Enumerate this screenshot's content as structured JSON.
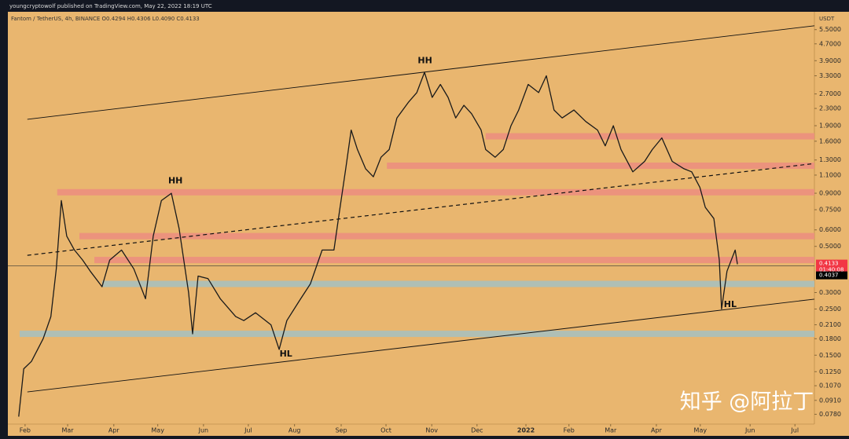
{
  "chart_data": {
    "type": "line",
    "credit": "youngcryptowolf published on TradingView.com, May 22, 2022 18:19 UTC",
    "title": "Fantom / TetherUS, 4h, BINANCE  O0.4294  H0.4306  L0.4090  C0.4133",
    "y_unit": "USDT",
    "watermark": "知乎 @阿拉丁",
    "log_scale": true,
    "background": "#e9b66f",
    "xlim": [
      -0.38,
      17.43
    ],
    "ylim": [
      0.07,
      6.7
    ],
    "xticks": [
      {
        "value": 0,
        "label": "Feb"
      },
      {
        "value": 0.94,
        "label": "Mar"
      },
      {
        "value": 1.96,
        "label": "Apr"
      },
      {
        "value": 2.93,
        "label": "May"
      },
      {
        "value": 3.94,
        "label": "Jun"
      },
      {
        "value": 4.93,
        "label": "Jul"
      },
      {
        "value": 5.95,
        "label": "Aug"
      },
      {
        "value": 6.98,
        "label": "Sep"
      },
      {
        "value": 7.97,
        "label": "Oct"
      },
      {
        "value": 8.98,
        "label": "Nov"
      },
      {
        "value": 9.98,
        "label": "Dec"
      },
      {
        "value": 11.06,
        "label": "2022"
      },
      {
        "value": 12.01,
        "label": "Feb"
      },
      {
        "value": 12.93,
        "label": "Mar"
      },
      {
        "value": 13.94,
        "label": "Apr"
      },
      {
        "value": 14.91,
        "label": "May"
      },
      {
        "value": 16.01,
        "label": "Jun"
      },
      {
        "value": 17.0,
        "label": "Jul"
      }
    ],
    "yticks": [
      {
        "value": 5.5,
        "label": "5.5000"
      },
      {
        "value": 4.7,
        "label": "4.7000"
      },
      {
        "value": 3.9,
        "label": "3.9000"
      },
      {
        "value": 3.3,
        "label": "3.3000"
      },
      {
        "value": 2.7,
        "label": "2.7000"
      },
      {
        "value": 2.3,
        "label": "2.3000"
      },
      {
        "value": 1.9,
        "label": "1.9000"
      },
      {
        "value": 1.6,
        "label": "1.6000"
      },
      {
        "value": 1.3,
        "label": "1.3000"
      },
      {
        "value": 1.1,
        "label": "1.1000"
      },
      {
        "value": 0.9,
        "label": "0.9000"
      },
      {
        "value": 0.75,
        "label": "0.7500"
      },
      {
        "value": 0.6,
        "label": "0.6000"
      },
      {
        "value": 0.5,
        "label": "0.5000"
      },
      {
        "value": 0.3,
        "label": "0.3000"
      },
      {
        "value": 0.25,
        "label": "0.2500"
      },
      {
        "value": 0.21,
        "label": "0.2100"
      },
      {
        "value": 0.18,
        "label": "0.1800"
      },
      {
        "value": 0.15,
        "label": "0.1500"
      },
      {
        "value": 0.125,
        "label": "0.1250"
      },
      {
        "value": 0.107,
        "label": "0.1070"
      },
      {
        "value": 0.091,
        "label": "0.0910"
      },
      {
        "value": 0.078,
        "label": "0.0780"
      }
    ],
    "series": [
      {
        "color": "#1a1a1a",
        "x": [
          -0.14,
          -0.03,
          0.14,
          0.4,
          0.57,
          0.69,
          0.8,
          0.92,
          1.09,
          1.27,
          1.44,
          1.7,
          1.87,
          2.13,
          2.4,
          2.66,
          2.83,
          3.01,
          3.23,
          3.4,
          3.61,
          3.7,
          3.82,
          4.04,
          4.31,
          4.65,
          4.83,
          5.09,
          5.43,
          5.61,
          5.78,
          6.04,
          6.3,
          6.56,
          6.82,
          6.94,
          7.08,
          7.2,
          7.34,
          7.52,
          7.69,
          7.86,
          8.04,
          8.21,
          8.47,
          8.65,
          8.82,
          8.99,
          9.17,
          9.34,
          9.51,
          9.69,
          9.86,
          10.07,
          10.17,
          10.38,
          10.56,
          10.73,
          10.9,
          11.11,
          11.34,
          11.51,
          11.68,
          11.86,
          12.12,
          12.38,
          12.64,
          12.81,
          12.99,
          13.16,
          13.42,
          13.68,
          13.85,
          14.06,
          14.29,
          14.55,
          14.72,
          14.9,
          15.02,
          15.21,
          15.33,
          15.38,
          15.5,
          15.68,
          15.73
        ],
        "values": [
          0.076,
          0.129,
          0.14,
          0.18,
          0.23,
          0.39,
          0.83,
          0.56,
          0.48,
          0.43,
          0.38,
          0.32,
          0.43,
          0.48,
          0.39,
          0.28,
          0.56,
          0.83,
          0.9,
          0.61,
          0.3,
          0.19,
          0.36,
          0.35,
          0.28,
          0.23,
          0.22,
          0.24,
          0.21,
          0.16,
          0.22,
          0.27,
          0.33,
          0.48,
          0.48,
          0.73,
          1.18,
          1.81,
          1.46,
          1.18,
          1.08,
          1.34,
          1.46,
          2.07,
          2.47,
          2.74,
          3.43,
          2.6,
          3.0,
          2.6,
          2.07,
          2.38,
          2.17,
          1.81,
          1.46,
          1.34,
          1.46,
          1.9,
          2.26,
          3.0,
          2.74,
          3.3,
          2.26,
          2.07,
          2.26,
          1.99,
          1.81,
          1.52,
          1.9,
          1.46,
          1.14,
          1.28,
          1.46,
          1.66,
          1.28,
          1.18,
          1.14,
          0.96,
          0.77,
          0.68,
          0.43,
          0.25,
          0.38,
          0.48,
          0.41
        ]
      }
    ],
    "zones": [
      {
        "from": 10.17,
        "value": 1.69,
        "color": "#ec8f7e"
      },
      {
        "from": 7.99,
        "value": 1.22,
        "color": "#ec8f7e"
      },
      {
        "from": 0.71,
        "value": 0.91,
        "color": "#ec8f7e"
      },
      {
        "from": 1.2,
        "value": 0.56,
        "color": "#ec8f7e"
      },
      {
        "from": 1.53,
        "value": 0.43,
        "color": "#ec8f7e"
      },
      {
        "from": 1.7,
        "value": 0.33,
        "color": "#a9c0bc"
      },
      {
        "from": -0.12,
        "value": 0.19,
        "color": "#a9c0bc"
      }
    ],
    "trend_lines": [
      {
        "x": [
          0.05,
          17.43
        ],
        "values": [
          2.04,
          5.74
        ],
        "dashed": false
      },
      {
        "x": [
          0.05,
          17.43
        ],
        "values": [
          0.0999,
          0.279
        ],
        "dashed": false
      },
      {
        "x": [
          0.05,
          17.43
        ],
        "values": [
          0.453,
          1.25
        ],
        "dashed": true
      }
    ],
    "annotations": [
      {
        "text": "HH",
        "x": 8.83,
        "y": 3.9
      },
      {
        "text": "HH",
        "x": 3.32,
        "y": 1.03
      },
      {
        "text": "HL",
        "x": 5.76,
        "y": 0.152
      },
      {
        "text": "HL",
        "x": 15.57,
        "y": 0.262
      }
    ],
    "price_tags": [
      {
        "value": 0.4133,
        "countdown": "01:40:08",
        "color": "#f23645"
      },
      {
        "value": 0.4037,
        "color": "#000000"
      }
    ]
  }
}
